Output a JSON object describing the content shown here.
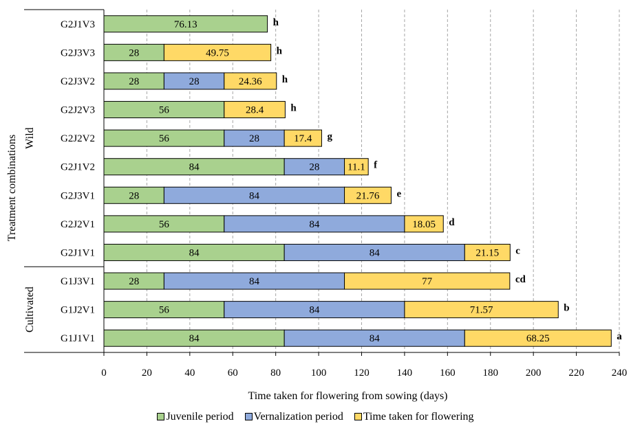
{
  "chart_data": {
    "type": "bar",
    "orientation": "horizontal",
    "stacked": true,
    "xlabel": "Time taken for flowering from sowing (days)",
    "ylabel": "Treatment combinations",
    "xlim": [
      0,
      240
    ],
    "xticks": [
      0,
      20,
      40,
      60,
      80,
      100,
      120,
      140,
      160,
      180,
      200,
      220,
      240
    ],
    "grid": "vertical dashed",
    "legend_position": "bottom",
    "categories": [
      "G2J1V3",
      "G2J3V3",
      "G2J3V2",
      "G2J2V3",
      "G2J2V2",
      "G2J1V2",
      "G2J3V1",
      "G2J2V1",
      "G2J1V1",
      "G1J3V1",
      "G1J2V1",
      "G1J1V1"
    ],
    "groups": [
      {
        "name": "Wild",
        "categories": [
          "G2J1V3",
          "G2J3V3",
          "G2J3V2",
          "G2J2V3",
          "G2J2V2",
          "G2J1V2",
          "G2J3V1",
          "G2J2V1",
          "G2J1V1"
        ]
      },
      {
        "name": "Cultivated",
        "categories": [
          "G1J3V1",
          "G1J2V1",
          "G1J1V1"
        ]
      }
    ],
    "series": [
      {
        "name": "Juvenile period",
        "color": "#a9d18e",
        "values": [
          76.13,
          28,
          28,
          56,
          56,
          84,
          28,
          56,
          84,
          28,
          56,
          84
        ]
      },
      {
        "name": "Vernalization period",
        "color": "#8faadc",
        "values": [
          null,
          null,
          28,
          null,
          28,
          28,
          84,
          84,
          84,
          84,
          84,
          84
        ]
      },
      {
        "name": "Time taken for flowering",
        "color": "#ffd966",
        "values": [
          null,
          49.75,
          24.36,
          28.4,
          17.4,
          11.1,
          21.76,
          18.05,
          21.15,
          77,
          71.57,
          68.25
        ]
      }
    ],
    "significance_letters": [
      "h",
      "h",
      "h",
      "h",
      "g",
      "f",
      "e",
      "d",
      "c",
      "cd",
      "b",
      "a"
    ]
  }
}
